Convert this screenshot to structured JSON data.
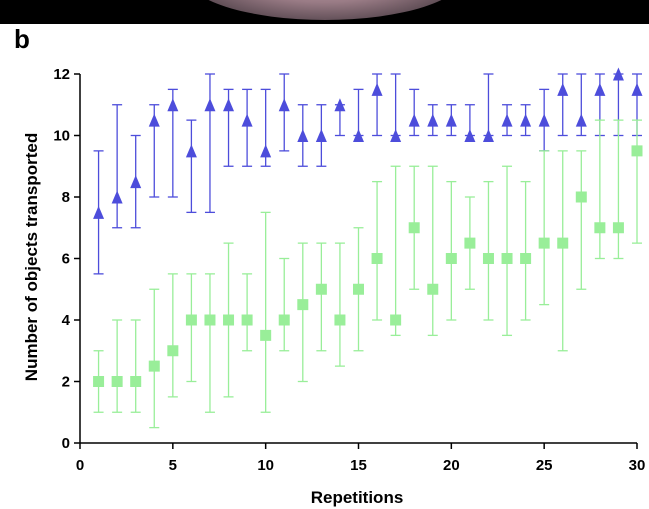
{
  "panel_label": "b",
  "chart_data": {
    "type": "scatter",
    "title": "",
    "xlabel": "Repetitions",
    "ylabel": "Number of objects transported",
    "xlim": [
      0,
      30
    ],
    "ylim": [
      0,
      12
    ],
    "xticks": [
      0,
      5,
      10,
      15,
      20,
      25,
      30
    ],
    "yticks": [
      0,
      2,
      4,
      6,
      8,
      10,
      12
    ],
    "grid": false,
    "series": [
      {
        "marker": "triangle",
        "color": "#4d4ddb",
        "points": [
          {
            "x": 1,
            "y": 7.5,
            "low": 5.5,
            "high": 9.5
          },
          {
            "x": 2,
            "y": 8,
            "low": 7,
            "high": 11
          },
          {
            "x": 3,
            "y": 8.5,
            "low": 7,
            "high": 10
          },
          {
            "x": 4,
            "y": 10.5,
            "low": 8,
            "high": 11
          },
          {
            "x": 5,
            "y": 11,
            "low": 8,
            "high": 11.5
          },
          {
            "x": 6,
            "y": 9.5,
            "low": 7.5,
            "high": 10.5
          },
          {
            "x": 7,
            "y": 11,
            "low": 7.5,
            "high": 12
          },
          {
            "x": 8,
            "y": 11,
            "low": 9,
            "high": 11.5
          },
          {
            "x": 9,
            "y": 10.5,
            "low": 9,
            "high": 11.5
          },
          {
            "x": 10,
            "y": 9.5,
            "low": 9,
            "high": 11.5
          },
          {
            "x": 11,
            "y": 11,
            "low": 9.5,
            "high": 12
          },
          {
            "x": 12,
            "y": 10,
            "low": 9,
            "high": 11
          },
          {
            "x": 13,
            "y": 10,
            "low": 9,
            "high": 11
          },
          {
            "x": 14,
            "y": 11,
            "low": 10,
            "high": 11
          },
          {
            "x": 15,
            "y": 10,
            "low": 10,
            "high": 11.5
          },
          {
            "x": 16,
            "y": 11.5,
            "low": 10,
            "high": 12
          },
          {
            "x": 17,
            "y": 10,
            "low": 10,
            "high": 12
          },
          {
            "x": 18,
            "y": 10.5,
            "low": 10,
            "high": 11.5
          },
          {
            "x": 19,
            "y": 10.5,
            "low": 10,
            "high": 11
          },
          {
            "x": 20,
            "y": 10.5,
            "low": 10,
            "high": 11
          },
          {
            "x": 21,
            "y": 10,
            "low": 10,
            "high": 11
          },
          {
            "x": 22,
            "y": 10,
            "low": 10,
            "high": 12
          },
          {
            "x": 23,
            "y": 10.5,
            "low": 10,
            "high": 11
          },
          {
            "x": 24,
            "y": 10.5,
            "low": 10,
            "high": 11
          },
          {
            "x": 25,
            "y": 10.5,
            "low": 9.5,
            "high": 11.5
          },
          {
            "x": 26,
            "y": 11.5,
            "low": 10,
            "high": 12
          },
          {
            "x": 27,
            "y": 10.5,
            "low": 10,
            "high": 12
          },
          {
            "x": 28,
            "y": 11.5,
            "low": 10,
            "high": 12
          },
          {
            "x": 29,
            "y": 12,
            "low": 10,
            "high": 12
          },
          {
            "x": 30,
            "y": 11.5,
            "low": 10,
            "high": 12
          }
        ]
      },
      {
        "marker": "square",
        "color": "#99ee99",
        "points": [
          {
            "x": 1,
            "y": 2,
            "low": 1,
            "high": 3
          },
          {
            "x": 2,
            "y": 2,
            "low": 1,
            "high": 4
          },
          {
            "x": 3,
            "y": 2,
            "low": 1,
            "high": 4
          },
          {
            "x": 4,
            "y": 2.5,
            "low": 0.5,
            "high": 5
          },
          {
            "x": 5,
            "y": 3,
            "low": 1.5,
            "high": 5.5
          },
          {
            "x": 6,
            "y": 4,
            "low": 2,
            "high": 5.5
          },
          {
            "x": 7,
            "y": 4,
            "low": 1,
            "high": 5.5
          },
          {
            "x": 8,
            "y": 4,
            "low": 1.5,
            "high": 6.5
          },
          {
            "x": 9,
            "y": 4,
            "low": 3,
            "high": 5.5
          },
          {
            "x": 10,
            "y": 3.5,
            "low": 1,
            "high": 7.5
          },
          {
            "x": 11,
            "y": 4,
            "low": 3,
            "high": 6
          },
          {
            "x": 12,
            "y": 4.5,
            "low": 2,
            "high": 6.5
          },
          {
            "x": 13,
            "y": 5,
            "low": 3,
            "high": 6.5
          },
          {
            "x": 14,
            "y": 4,
            "low": 2.5,
            "high": 6.5
          },
          {
            "x": 15,
            "y": 5,
            "low": 3,
            "high": 7
          },
          {
            "x": 16,
            "y": 6,
            "low": 4,
            "high": 8.5
          },
          {
            "x": 17,
            "y": 4,
            "low": 3.5,
            "high": 9
          },
          {
            "x": 18,
            "y": 7,
            "low": 5,
            "high": 9
          },
          {
            "x": 19,
            "y": 5,
            "low": 3.5,
            "high": 9
          },
          {
            "x": 20,
            "y": 6,
            "low": 4,
            "high": 8.5
          },
          {
            "x": 21,
            "y": 6.5,
            "low": 5,
            "high": 8
          },
          {
            "x": 22,
            "y": 6,
            "low": 4,
            "high": 8.5
          },
          {
            "x": 23,
            "y": 6,
            "low": 3.5,
            "high": 9
          },
          {
            "x": 24,
            "y": 6,
            "low": 4,
            "high": 8.5
          },
          {
            "x": 25,
            "y": 6.5,
            "low": 4.5,
            "high": 9.5
          },
          {
            "x": 26,
            "y": 6.5,
            "low": 3,
            "high": 9.5
          },
          {
            "x": 27,
            "y": 8,
            "low": 5,
            "high": 9.5
          },
          {
            "x": 28,
            "y": 7,
            "low": 6,
            "high": 10.5
          },
          {
            "x": 29,
            "y": 7,
            "low": 6,
            "high": 10.5
          },
          {
            "x": 30,
            "y": 9.5,
            "low": 6.5,
            "high": 10.5
          }
        ]
      }
    ]
  }
}
